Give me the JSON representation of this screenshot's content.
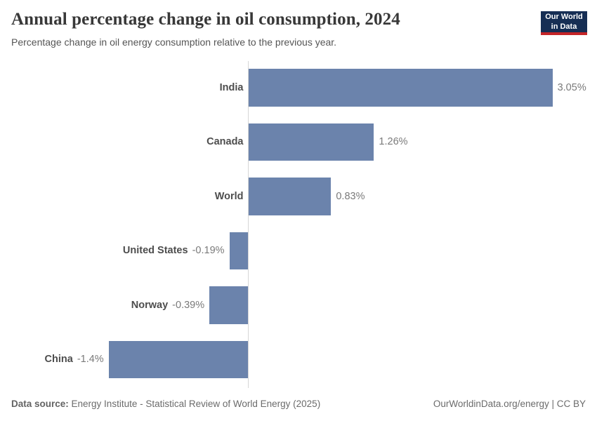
{
  "header": {
    "title": "Annual percentage change in oil consumption, 2024",
    "subtitle": "Percentage change in oil energy consumption relative to the previous year.",
    "logo": {
      "line1": "Our World",
      "line2": "in Data"
    }
  },
  "chart_data": {
    "type": "bar",
    "orientation": "horizontal",
    "title": "Annual percentage change in oil consumption, 2024",
    "unit": "%",
    "categories": [
      "India",
      "Canada",
      "World",
      "United States",
      "Norway",
      "China"
    ],
    "values": [
      3.05,
      1.26,
      0.83,
      -0.19,
      -0.39,
      -1.4
    ],
    "value_labels": [
      "3.05%",
      "1.26%",
      "0.83%",
      "-0.19%",
      "-0.39%",
      "-1.4%"
    ],
    "xlim": [
      -1.4,
      3.05
    ],
    "grid": false,
    "legend": false,
    "bar_color": "#6b83ac",
    "axis_color": "#d6d6d6"
  },
  "footer": {
    "datasource_label": "Data source:",
    "datasource_text": " Energy Institute - Statistical Review of World Energy (2025)",
    "credit": "OurWorldinData.org/energy | CC BY"
  }
}
